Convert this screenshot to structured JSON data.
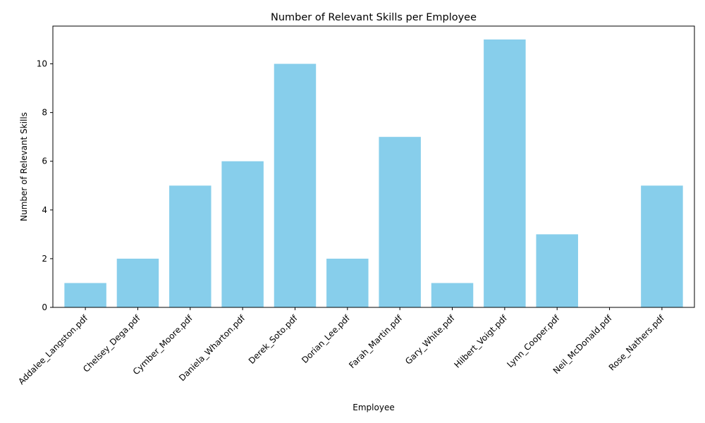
{
  "chart_data": {
    "type": "bar",
    "title": "Number of Relevant Skills per Employee",
    "xlabel": "Employee",
    "ylabel": "Number of Relevant Skills",
    "categories": [
      "Addalee_Langston.pdf",
      "Chelsey_Dega.pdf",
      "Cymber_Moore.pdf",
      "Daniela_Wharton.pdf",
      "Derek_Soto.pdf",
      "Dorian_Lee.pdf",
      "Farah_Martin.pdf",
      "Gary_White.pdf",
      "Hilbert_Voigt.pdf",
      "Lynn_Cooper.pdf",
      "Neil_McDonald.pdf",
      "Rose_Nathers.pdf"
    ],
    "values": [
      1,
      2,
      5,
      6,
      10,
      2,
      7,
      1,
      11,
      3,
      0,
      5
    ],
    "ylim": [
      0,
      11.55
    ],
    "yticks": [
      0,
      2,
      4,
      6,
      8,
      10
    ],
    "bar_color": "#87ceeb",
    "grid": false,
    "legend": "none"
  }
}
